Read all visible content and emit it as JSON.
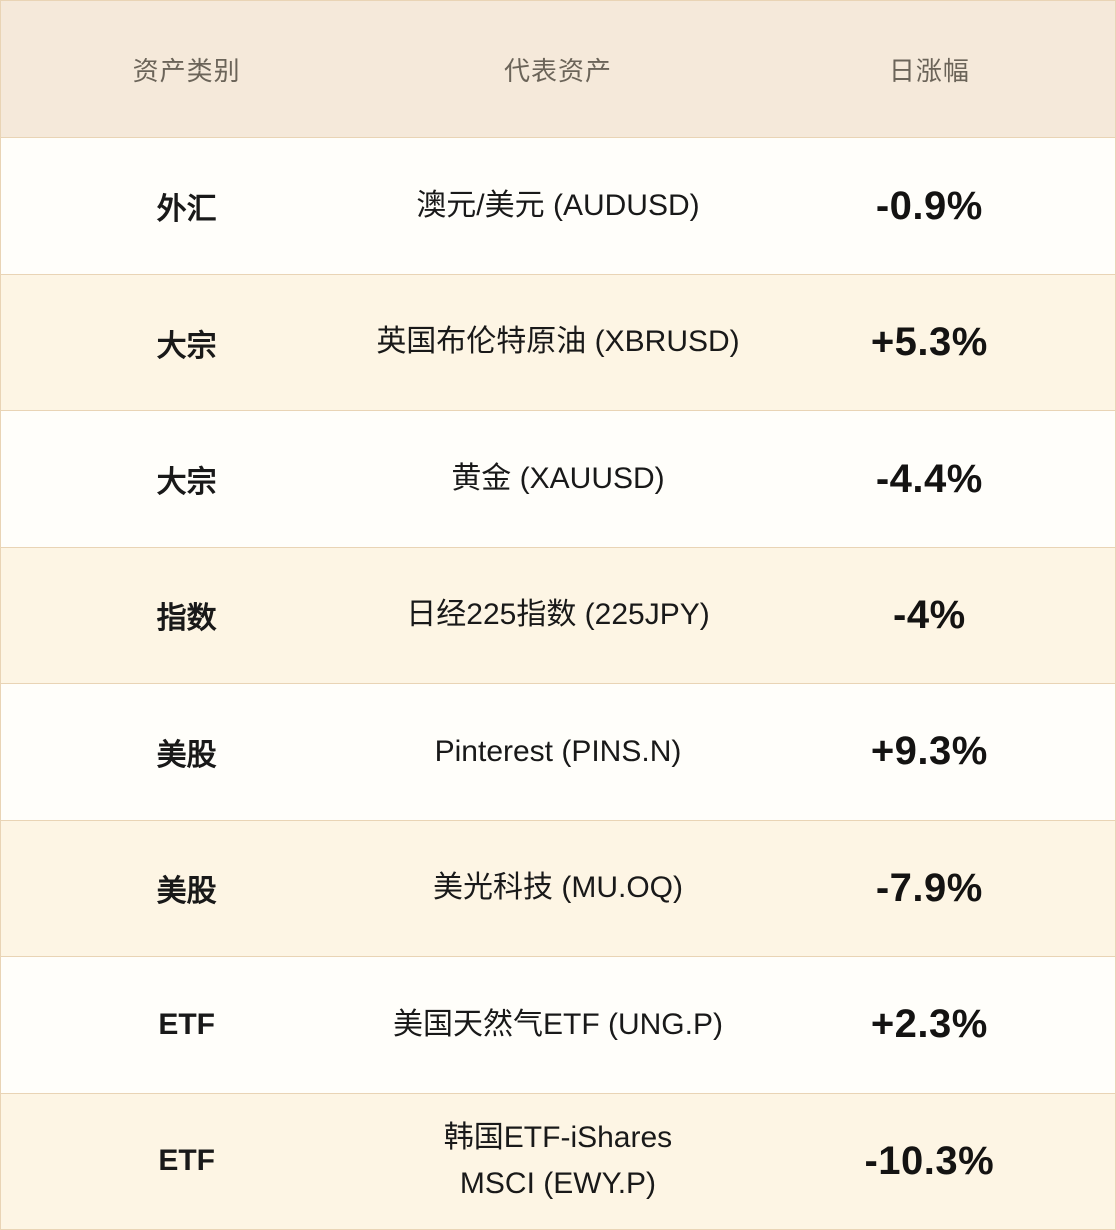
{
  "table": {
    "headers": {
      "category": "资产类别",
      "asset": "代表资产",
      "change": "日涨幅"
    },
    "rows": [
      {
        "category": "外汇",
        "asset": "澳元/美元 (AUDUSD)",
        "change": "-0.9%"
      },
      {
        "category": "大宗",
        "asset": "英国布伦特原油 (XBRUSD)",
        "change": "+5.3%"
      },
      {
        "category": "大宗",
        "asset": "黄金 (XAUUSD)",
        "change": "-4.4%"
      },
      {
        "category": "指数",
        "asset": "日经225指数 (225JPY)",
        "change": "-4%"
      },
      {
        "category": "美股",
        "asset": "Pinterest (PINS.N)",
        "change": "+9.3%"
      },
      {
        "category": "美股",
        "asset": "美光科技 (MU.OQ)",
        "change": "-7.9%"
      },
      {
        "category": "ETF",
        "asset": "美国天然气ETF (UNG.P)",
        "change": "+2.3%"
      },
      {
        "category": "ETF",
        "asset": "韩国ETF-iShares\nMSCI (EWY.P)",
        "change": "-10.3%"
      }
    ],
    "colors": {
      "header_bg": "#f5e9da",
      "row_white": "#fffefa",
      "row_cream": "#fdf5e4",
      "border": "#e9d4b5",
      "header_text": "#6b6459",
      "body_text": "#191919",
      "percent_text": "#141312"
    }
  },
  "chart_data": {
    "type": "table",
    "title": "",
    "columns": [
      "资产类别",
      "代表资产",
      "日涨幅"
    ],
    "rows": [
      [
        "外汇",
        "澳元/美元 (AUDUSD)",
        "-0.9%"
      ],
      [
        "大宗",
        "英国布伦特原油 (XBRUSD)",
        "+5.3%"
      ],
      [
        "大宗",
        "黄金 (XAUUSD)",
        "-4.4%"
      ],
      [
        "指数",
        "日经225指数 (225JPY)",
        "-4%"
      ],
      [
        "美股",
        "Pinterest (PINS.N)",
        "+9.3%"
      ],
      [
        "美股",
        "美光科技 (MU.OQ)",
        "-7.9%"
      ],
      [
        "ETF",
        "美国天然气ETF (UNG.P)",
        "+2.3%"
      ],
      [
        "ETF",
        "韩国ETF-iShares MSCI (EWY.P)",
        "-10.3%"
      ]
    ],
    "daily_change_values_percent": [
      -0.9,
      5.3,
      -4.4,
      -4,
      9.3,
      -7.9,
      2.3,
      -10.3
    ],
    "layout": {
      "alternating_row_shading": true,
      "text_alignment": "center",
      "grid": "horizontal-rules-only"
    }
  }
}
